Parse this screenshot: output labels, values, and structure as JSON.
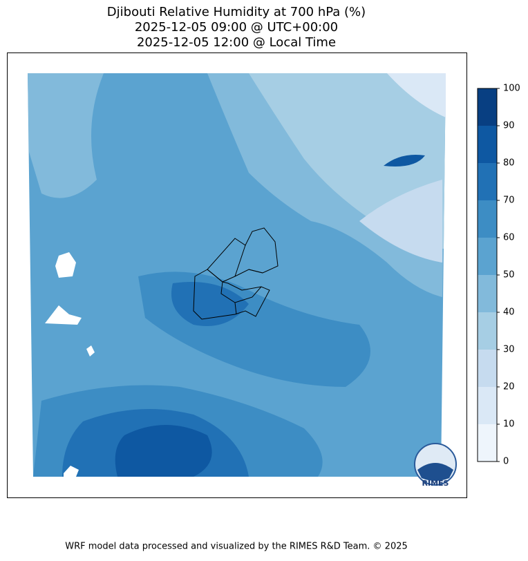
{
  "title_lines": [
    "Djibouti Relative Humidity at 700 hPa (%)",
    "2025-12-05 09:00 @ UTC+00:00",
    "2025-12-05 12:00 @ Local Time"
  ],
  "colorbar": {
    "lim": [
      0,
      100
    ],
    "ticks": [
      0,
      10,
      20,
      30,
      40,
      50,
      60,
      70,
      80,
      90,
      100
    ],
    "colors": [
      "#eef5fc",
      "#dae8f6",
      "#c6dbef",
      "#a6cee4",
      "#82badb",
      "#5ba3d0",
      "#3d8dc4",
      "#2171b5",
      "#0e58a2",
      "#083f82"
    ]
  },
  "logo": "RIMES",
  "footer": "WRF model data processed and visualized by the RIMES R&D Team. © 2025"
}
